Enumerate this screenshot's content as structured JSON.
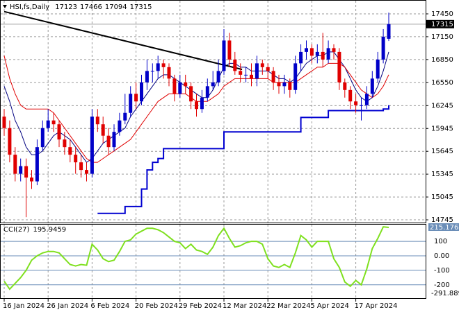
{
  "chart_data": {
    "type": "candlestick",
    "symbol": "HSI,fs,Daily",
    "categories": [
      "16 Jan 2024",
      null,
      null,
      null,
      null,
      null,
      null,
      null,
      "26 Jan 2024",
      null,
      null,
      null,
      null,
      null,
      null,
      null,
      "6 Feb 2024",
      null,
      null,
      null,
      null,
      null,
      null,
      null,
      "20 Feb 2024",
      null,
      null,
      null,
      null,
      null,
      null,
      null,
      "29 Feb 2024",
      null,
      null,
      null,
      null,
      null,
      null,
      null,
      "12 Mar 2024",
      null,
      null,
      null,
      null,
      null,
      null,
      null,
      "22 Mar 2024",
      null,
      null,
      null,
      null,
      null,
      null,
      null,
      "5 Apr 2024",
      null,
      null,
      null,
      null,
      null,
      null,
      null,
      "17 Apr 2024",
      null,
      null,
      null,
      null,
      null,
      null
    ],
    "open": [
      16100,
      15950,
      15600,
      15350,
      15450,
      15300,
      15250,
      15700,
      15950,
      16050,
      16000,
      15800,
      15700,
      15600,
      15500,
      15400,
      15350,
      16100,
      16000,
      15850,
      15700,
      15900,
      16050,
      16150,
      16400,
      16300,
      16550,
      16700,
      16700,
      16800,
      16750,
      16600,
      16400,
      16550,
      16500,
      16300,
      16200,
      16350,
      16500,
      16550,
      16700,
      17100,
      16850,
      16700,
      16650,
      16650,
      16600,
      16800,
      16750,
      16700,
      16550,
      16500,
      16550,
      16450,
      16800,
      16950,
      17000,
      16900,
      16950,
      16850,
      17000,
      16950,
      16550,
      16450,
      16300,
      16250,
      16250,
      16400,
      16600,
      16850,
      17123
    ],
    "high": [
      16200,
      16050,
      15700,
      15550,
      15550,
      15400,
      15800,
      16050,
      16200,
      16150,
      16050,
      15900,
      15800,
      15700,
      15600,
      15500,
      16200,
      16200,
      16100,
      15950,
      16000,
      16150,
      16400,
      16500,
      16550,
      16650,
      16850,
      16800,
      16900,
      16850,
      16800,
      16650,
      16650,
      16650,
      16550,
      16400,
      16450,
      16600,
      16700,
      16850,
      17250,
      17200,
      16950,
      16800,
      16750,
      16800,
      16900,
      16850,
      16800,
      16750,
      16650,
      16650,
      16600,
      16900,
      17050,
      17100,
      17050,
      17050,
      17200,
      17100,
      17050,
      17000,
      16600,
      16500,
      16400,
      16350,
      16500,
      16700,
      16950,
      17250,
      17466
    ],
    "low": [
      15850,
      15500,
      15250,
      15250,
      14780,
      15150,
      15200,
      15650,
      15900,
      15900,
      15700,
      15600,
      15500,
      15350,
      15300,
      15250,
      15300,
      15900,
      15750,
      15600,
      15650,
      15850,
      16000,
      16100,
      16200,
      16250,
      16450,
      16550,
      16600,
      16600,
      16500,
      16300,
      16350,
      16400,
      16200,
      16100,
      16150,
      16300,
      16450,
      16500,
      16650,
      16750,
      16650,
      16550,
      16550,
      16500,
      16500,
      16650,
      16600,
      16450,
      16400,
      16400,
      16350,
      16400,
      16700,
      16850,
      16800,
      16800,
      16750,
      16800,
      16850,
      16450,
      16350,
      16200,
      16150,
      16050,
      16200,
      16350,
      16550,
      16800,
      17094
    ],
    "close": [
      15950,
      15600,
      15350,
      15450,
      15300,
      15250,
      15700,
      15950,
      16050,
      16000,
      15800,
      15700,
      15600,
      15500,
      15400,
      15350,
      16100,
      16000,
      15850,
      15700,
      15900,
      16050,
      16150,
      16400,
      16300,
      16550,
      16700,
      16700,
      16800,
      16750,
      16600,
      16400,
      16550,
      16500,
      16300,
      16200,
      16350,
      16500,
      16550,
      16700,
      17100,
      16850,
      16700,
      16650,
      16650,
      16600,
      16800,
      16750,
      16700,
      16550,
      16500,
      16550,
      16450,
      16800,
      16950,
      17000,
      16900,
      16950,
      16850,
      17000,
      16950,
      16550,
      16450,
      16300,
      16250,
      16250,
      16400,
      16600,
      16850,
      17150,
      17315
    ],
    "up_color": "#0000c8",
    "down_color": "#e00000",
    "ylim": [
      14709,
      17632
    ],
    "yticks": [
      17450,
      17150,
      16850,
      16550,
      16245,
      15945,
      15645,
      15345,
      15045,
      14745
    ],
    "grid": true,
    "lines": [
      {
        "color": "#000080",
        "values": [
          16500,
          16300,
          16050,
          15900,
          15700,
          15600,
          15600,
          15650,
          15750,
          15850,
          15900,
          15850,
          15800,
          15700,
          15600,
          15500,
          15550,
          15650,
          15750,
          15800,
          15850,
          15900,
          15950,
          16100,
          16200,
          16300,
          16400,
          16500,
          16600,
          16650,
          16650,
          16600,
          16550,
          16500,
          16450,
          16400,
          16350,
          16350,
          16450,
          16600,
          16750,
          16800,
          16800,
          16750,
          16750,
          16700,
          16700,
          16700,
          16700,
          16650,
          16600,
          16600,
          16550,
          16600,
          16700,
          16800,
          16850,
          16900,
          16900,
          16950,
          16950,
          16850,
          16750,
          16600,
          16450,
          16350,
          16300,
          16350,
          16500,
          16700,
          16950
        ]
      },
      {
        "color": "#e00000",
        "values": [
          16900,
          16600,
          16400,
          16250,
          16200,
          16200,
          16200,
          16200,
          16200,
          16150,
          16050,
          15950,
          15850,
          15750,
          15650,
          15550,
          15500,
          15500,
          15550,
          15600,
          15650,
          15700,
          15750,
          15800,
          15900,
          16000,
          16100,
          16200,
          16300,
          16350,
          16400,
          16400,
          16400,
          16400,
          16350,
          16300,
          16300,
          16300,
          16350,
          16400,
          16500,
          16550,
          16600,
          16600,
          16600,
          16600,
          16600,
          16600,
          16600,
          16550,
          16550,
          16550,
          16550,
          16550,
          16600,
          16650,
          16700,
          16750,
          16750,
          16800,
          16800,
          16800,
          16750,
          16650,
          16550,
          16450,
          16400,
          16350,
          16400,
          16500,
          16650
        ]
      },
      {
        "color": "#0000d0",
        "width": 2,
        "step": true,
        "values": [
          null,
          null,
          null,
          null,
          null,
          null,
          null,
          null,
          null,
          null,
          null,
          null,
          null,
          null,
          null,
          null,
          null,
          14830,
          14830,
          14830,
          14830,
          14830,
          14920,
          14920,
          14920,
          15150,
          15400,
          15500,
          15550,
          15680,
          15680,
          15680,
          15680,
          15680,
          15680,
          15680,
          15680,
          15680,
          15680,
          15680,
          15900,
          15900,
          15900,
          15900,
          15900,
          15900,
          15900,
          15900,
          15900,
          15900,
          15900,
          15900,
          15900,
          15900,
          16090,
          16090,
          16090,
          16090,
          16090,
          16180,
          16180,
          16180,
          16180,
          16180,
          16180,
          16180,
          16180,
          16180,
          16180,
          16200,
          16250
        ]
      },
      {
        "color": "#000000",
        "width": 2,
        "x": [
          0,
          43.3
        ],
        "values": [
          17480,
          16720
        ]
      }
    ],
    "indicator": {
      "type": "line",
      "name": "CCI(27)",
      "color": "#7fe01f",
      "values": [
        -175,
        -230,
        -190,
        -150,
        -100,
        -30,
        0,
        20,
        30,
        30,
        20,
        -20,
        -60,
        -70,
        -60,
        -65,
        80,
        40,
        -20,
        -40,
        -30,
        30,
        100,
        110,
        150,
        170,
        190,
        190,
        180,
        160,
        130,
        100,
        90,
        50,
        80,
        40,
        30,
        10,
        60,
        140,
        190,
        120,
        60,
        70,
        90,
        100,
        100,
        80,
        -20,
        -70,
        -80,
        -60,
        -80,
        20,
        140,
        110,
        60,
        100,
        100,
        100,
        -20,
        -80,
        -180,
        -210,
        -170,
        -200,
        -90,
        50,
        120,
        200,
        195.9459
      ],
      "ylim": [
        -291.889,
        215.1762
      ],
      "yticks": [
        100,
        {
          "value": 0,
          "label": "0.00"
        },
        -100,
        -200
      ],
      "level_color": "#6b8eb8"
    }
  }
}
